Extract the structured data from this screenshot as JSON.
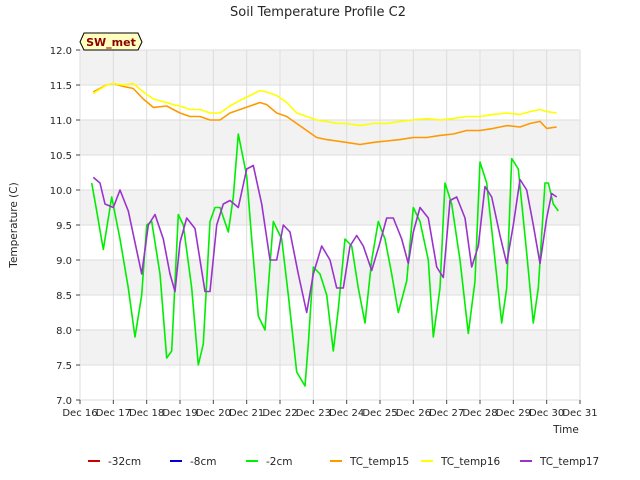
{
  "chart_data": {
    "type": "line",
    "title": "Soil Temperature Profile C2",
    "xlabel": "Time",
    "ylabel": "Temperature (C)",
    "annotation": "SW_met",
    "xlim": [
      16,
      31
    ],
    "ylim": [
      7.0,
      12.0
    ],
    "x_tick_values": [
      16,
      17,
      18,
      19,
      20,
      21,
      22,
      23,
      24,
      25,
      26,
      27,
      28,
      29,
      30,
      31
    ],
    "x_tick_labels": [
      "Dec 16",
      "Dec 17",
      "Dec 18",
      "Dec 19",
      "Dec 20",
      "Dec 21",
      "Dec 22",
      "Dec 23",
      "Dec 24",
      "Dec 25",
      "Dec 26",
      "Dec 27",
      "Dec 28",
      "Dec 29",
      "Dec 30",
      "Dec 31"
    ],
    "y_tick_values": [
      7.0,
      7.5,
      8.0,
      8.5,
      9.0,
      9.5,
      10.0,
      10.5,
      11.0,
      11.5,
      12.0
    ],
    "y_tick_labels": [
      "7.0",
      "7.5",
      "8.0",
      "8.5",
      "9.0",
      "9.5",
      "10.0",
      "10.5",
      "11.0",
      "11.5",
      "12.0"
    ],
    "grid": true,
    "legend_position": "bottom",
    "series": [
      {
        "name": "-32cm",
        "color": "#cc0000",
        "x": [],
        "y": []
      },
      {
        "name": "-8cm",
        "color": "#0000cc",
        "x": [],
        "y": []
      },
      {
        "name": "-2cm",
        "color": "#00ee00",
        "x": [
          16.35,
          16.5,
          16.7,
          16.95,
          17.2,
          17.45,
          17.65,
          17.85,
          18.0,
          18.15,
          18.4,
          18.6,
          18.75,
          18.95,
          19.1,
          19.35,
          19.55,
          19.7,
          19.9,
          20.05,
          20.2,
          20.45,
          20.6,
          20.75,
          21.0,
          21.15,
          21.35,
          21.55,
          21.8,
          22.05,
          22.25,
          22.5,
          22.75,
          22.85,
          23.0,
          23.2,
          23.4,
          23.6,
          23.75,
          23.95,
          24.15,
          24.35,
          24.55,
          24.75,
          24.95,
          25.15,
          25.35,
          25.55,
          25.8,
          26.0,
          26.2,
          26.45,
          26.6,
          26.8,
          26.95,
          27.15,
          27.4,
          27.65,
          27.85,
          28.0,
          28.2,
          28.45,
          28.65,
          28.8,
          28.95,
          29.15,
          29.4,
          29.6,
          29.75,
          29.95,
          30.05,
          30.2,
          30.35
        ],
        "y": [
          10.1,
          9.7,
          9.15,
          9.9,
          9.3,
          8.6,
          7.9,
          8.5,
          9.5,
          9.55,
          8.8,
          7.6,
          7.7,
          9.65,
          9.5,
          8.6,
          7.5,
          7.8,
          9.55,
          9.75,
          9.75,
          9.4,
          9.9,
          10.8,
          10.2,
          9.3,
          8.2,
          8.0,
          9.55,
          9.3,
          8.5,
          7.4,
          7.2,
          7.8,
          8.9,
          8.8,
          8.5,
          7.7,
          8.3,
          9.3,
          9.2,
          8.6,
          8.1,
          9.0,
          9.55,
          9.3,
          8.8,
          8.25,
          8.7,
          9.75,
          9.55,
          9.0,
          7.9,
          8.6,
          10.1,
          9.8,
          9.0,
          7.95,
          8.7,
          10.4,
          10.1,
          9.0,
          8.1,
          8.6,
          10.45,
          10.3,
          9.1,
          8.1,
          8.6,
          10.1,
          10.1,
          9.8,
          9.7
        ]
      },
      {
        "name": "TC_temp15",
        "color": "#ff9900",
        "x": [
          16.4,
          16.8,
          17.0,
          17.3,
          17.6,
          17.9,
          18.2,
          18.6,
          18.8,
          19.0,
          19.3,
          19.6,
          19.9,
          20.2,
          20.5,
          20.8,
          21.1,
          21.4,
          21.6,
          21.9,
          22.2,
          22.5,
          22.8,
          23.1,
          23.4,
          23.7,
          24.0,
          24.4,
          24.8,
          25.2,
          25.6,
          26.0,
          26.4,
          26.8,
          27.2,
          27.6,
          28.0,
          28.4,
          28.8,
          29.2,
          29.5,
          29.8,
          30.0,
          30.3
        ],
        "y": [
          11.4,
          11.5,
          11.52,
          11.48,
          11.45,
          11.3,
          11.18,
          11.2,
          11.15,
          11.1,
          11.05,
          11.05,
          11.0,
          11.0,
          11.1,
          11.15,
          11.2,
          11.25,
          11.22,
          11.1,
          11.05,
          10.95,
          10.85,
          10.75,
          10.72,
          10.7,
          10.68,
          10.65,
          10.68,
          10.7,
          10.72,
          10.75,
          10.75,
          10.78,
          10.8,
          10.85,
          10.85,
          10.88,
          10.92,
          10.9,
          10.95,
          10.98,
          10.88,
          10.9
        ]
      },
      {
        "name": "TC_temp16",
        "color": "#ffff00",
        "x": [
          16.4,
          16.8,
          17.0,
          17.3,
          17.6,
          17.9,
          18.2,
          18.6,
          18.8,
          19.0,
          19.3,
          19.6,
          19.9,
          20.2,
          20.5,
          20.8,
          21.1,
          21.4,
          21.6,
          21.9,
          22.2,
          22.5,
          22.8,
          23.1,
          23.4,
          23.7,
          24.0,
          24.4,
          24.8,
          25.2,
          25.6,
          26.0,
          26.4,
          26.8,
          27.2,
          27.6,
          28.0,
          28.4,
          28.8,
          29.2,
          29.5,
          29.8,
          30.0,
          30.3
        ],
        "y": [
          11.38,
          11.5,
          11.52,
          11.5,
          11.52,
          11.4,
          11.3,
          11.25,
          11.22,
          11.2,
          11.15,
          11.15,
          11.1,
          11.1,
          11.2,
          11.28,
          11.35,
          11.42,
          11.4,
          11.35,
          11.25,
          11.1,
          11.05,
          11.0,
          10.98,
          10.95,
          10.95,
          10.92,
          10.95,
          10.95,
          10.98,
          11.0,
          11.02,
          11.0,
          11.02,
          11.05,
          11.05,
          11.08,
          11.1,
          11.08,
          11.12,
          11.15,
          11.12,
          11.1
        ]
      },
      {
        "name": "TC_temp17",
        "color": "#9933cc",
        "x": [
          16.4,
          16.6,
          16.75,
          17.0,
          17.2,
          17.45,
          17.65,
          17.85,
          18.05,
          18.25,
          18.5,
          18.7,
          18.85,
          19.0,
          19.2,
          19.45,
          19.75,
          19.9,
          20.1,
          20.3,
          20.5,
          20.75,
          21.0,
          21.2,
          21.45,
          21.7,
          21.9,
          22.1,
          22.3,
          22.55,
          22.8,
          23.0,
          23.25,
          23.5,
          23.7,
          23.9,
          24.1,
          24.3,
          24.5,
          24.75,
          25.0,
          25.2,
          25.4,
          25.65,
          25.85,
          26.0,
          26.2,
          26.45,
          26.7,
          26.9,
          27.1,
          27.3,
          27.55,
          27.75,
          27.95,
          28.15,
          28.35,
          28.6,
          28.8,
          29.0,
          29.2,
          29.4,
          29.6,
          29.8,
          30.0,
          30.15,
          30.3
        ],
        "y": [
          10.18,
          10.1,
          9.8,
          9.75,
          10.0,
          9.7,
          9.25,
          8.8,
          9.5,
          9.65,
          9.3,
          8.8,
          8.55,
          9.25,
          9.6,
          9.45,
          8.55,
          8.55,
          9.5,
          9.8,
          9.85,
          9.75,
          10.3,
          10.35,
          9.8,
          9.0,
          9.0,
          9.5,
          9.4,
          8.8,
          8.25,
          8.8,
          9.2,
          9.0,
          8.6,
          8.6,
          9.2,
          9.35,
          9.2,
          8.85,
          9.25,
          9.6,
          9.6,
          9.3,
          8.95,
          9.4,
          9.75,
          9.6,
          8.9,
          8.75,
          9.85,
          9.9,
          9.6,
          8.9,
          9.2,
          10.05,
          9.9,
          9.35,
          8.95,
          9.5,
          10.15,
          10.0,
          9.5,
          8.95,
          9.6,
          9.95,
          9.9
        ]
      }
    ]
  }
}
